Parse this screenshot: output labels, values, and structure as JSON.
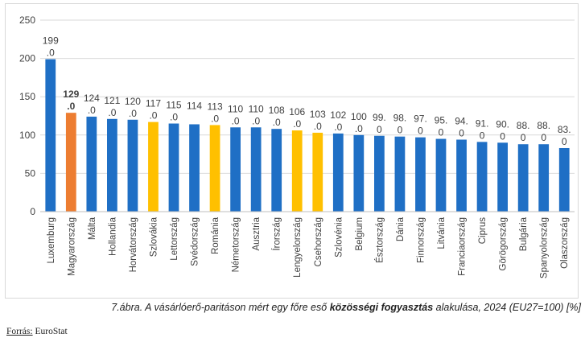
{
  "caption": {
    "prefix": "7.ábra. A vásárlóerő-paritáson mért egy főre eső ",
    "bold": "közösségi fogyasztás",
    "suffix": " alakulása, 2024 (EU27=100) [%]"
  },
  "source": {
    "label": "Forrás:",
    "value": " EuroStat"
  },
  "colors": {
    "default": "#1f6fc5",
    "hungary": "#ed7d31",
    "v4": "#ffc000"
  },
  "chart_data": {
    "type": "bar",
    "title": "",
    "xlabel": "",
    "ylabel": "",
    "ylim": [
      0,
      250
    ],
    "yticks": [
      "0",
      "50",
      "100",
      "150",
      "200",
      "250"
    ],
    "grid": true,
    "categories": [
      "Luxemburg",
      "Magyarország",
      "Málta",
      "Hollandia",
      "Horvátország",
      "Szlovákia",
      "Lettország",
      "Svédország",
      "Románia",
      "Németország",
      "Ausztria",
      "Írország",
      "Lengyelország",
      "Csehország",
      "Szlovénia",
      "Belgium",
      "Észtország",
      "Dánia",
      "Finnország",
      "Litvánia",
      "Franciaország",
      "Ciprus",
      "Görögország",
      "Bulgária",
      "Spanyolország",
      "Olaszország"
    ],
    "values": [
      199.0,
      129.0,
      124.0,
      121.0,
      120.0,
      117.0,
      115.0,
      114.0,
      113.0,
      110.0,
      110.0,
      108.0,
      106.0,
      103.0,
      102.0,
      100.0,
      99.0,
      98.0,
      97.0,
      95.0,
      94.0,
      91.0,
      90.0,
      88.0,
      88.0,
      83.0
    ],
    "label_top": [
      "199",
      "129",
      "124",
      "121",
      "120",
      "117",
      "115",
      "114",
      "113",
      "110",
      "110",
      "108",
      "106",
      "103",
      "102",
      "100",
      "99.",
      "98.",
      "97.",
      "95.",
      "94.",
      "91.",
      "90.",
      "88.",
      "88.",
      "83."
    ],
    "label_bottom": [
      ".0",
      ".0",
      ".0",
      ".0",
      ".0",
      ".0",
      ".0",
      "",
      ".0",
      ".0",
      ".0",
      ".0",
      ".0",
      ".0",
      ".0",
      ".0",
      "0",
      "0",
      "0",
      "0",
      "0",
      "0",
      "0",
      "0",
      "0",
      "0"
    ],
    "highlight": [
      "default",
      "hungary",
      "default",
      "default",
      "default",
      "v4",
      "default",
      "default",
      "v4",
      "default",
      "default",
      "default",
      "v4",
      "v4",
      "default",
      "default",
      "default",
      "default",
      "default",
      "default",
      "default",
      "default",
      "default",
      "default",
      "default",
      "default"
    ]
  }
}
